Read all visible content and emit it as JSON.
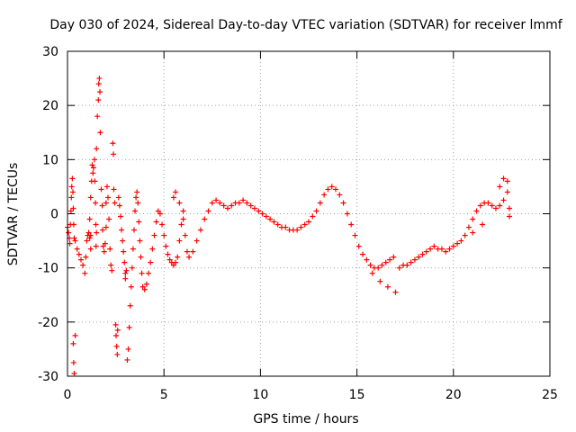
{
  "chart_data": {
    "type": "scatter",
    "title": "Day 030 of 2024, Sidereal Day-to-day VTEC variation (SDTVAR) for receiver lmmf",
    "xlabel": "GPS time / hours",
    "ylabel": "SDTVAR / TECUs",
    "xlim": [
      0,
      25
    ],
    "ylim": [
      -30,
      30
    ],
    "xticks": [
      0,
      5,
      10,
      15,
      20,
      25
    ],
    "yticks": [
      -30,
      -20,
      -10,
      0,
      10,
      20,
      30
    ],
    "grid": true,
    "marker": "+",
    "series": [
      {
        "name": "SDTVAR",
        "color": "#ff0000",
        "points": [
          [
            0.0,
            -2.5
          ],
          [
            0.05,
            -3.5
          ],
          [
            0.1,
            -4.5
          ],
          [
            0.12,
            -5.5
          ],
          [
            0.15,
            -2.0
          ],
          [
            0.18,
            0.5
          ],
          [
            0.2,
            3.0
          ],
          [
            0.22,
            5.0
          ],
          [
            0.25,
            6.5
          ],
          [
            0.28,
            4.0
          ],
          [
            0.3,
            1.0
          ],
          [
            0.32,
            -2.0
          ],
          [
            0.35,
            -4.5
          ],
          [
            0.3,
            -24.0
          ],
          [
            0.32,
            -27.5
          ],
          [
            0.35,
            -29.5
          ],
          [
            0.4,
            -22.5
          ],
          [
            0.4,
            -5.0
          ],
          [
            0.5,
            -6.5
          ],
          [
            0.6,
            -7.5
          ],
          [
            0.7,
            -8.5
          ],
          [
            0.8,
            -9.5
          ],
          [
            0.9,
            -11.0
          ],
          [
            0.95,
            -8.0
          ],
          [
            1.0,
            -5.0
          ],
          [
            1.05,
            -4.0
          ],
          [
            1.1,
            -3.5
          ],
          [
            1.15,
            -4.5
          ],
          [
            1.2,
            -6.5
          ],
          [
            1.2,
            -4.0
          ],
          [
            1.15,
            -1.0
          ],
          [
            1.2,
            3.0
          ],
          [
            1.25,
            6.0
          ],
          [
            1.28,
            9.0
          ],
          [
            1.32,
            7.5
          ],
          [
            1.35,
            8.5
          ],
          [
            1.4,
            10.0
          ],
          [
            1.42,
            6.0
          ],
          [
            1.45,
            2.0
          ],
          [
            1.47,
            -2.0
          ],
          [
            1.5,
            -3.5
          ],
          [
            1.48,
            -6.0
          ],
          [
            1.5,
            12.0
          ],
          [
            1.55,
            18.0
          ],
          [
            1.6,
            21.0
          ],
          [
            1.62,
            24.0
          ],
          [
            1.65,
            25.0
          ],
          [
            1.68,
            22.5
          ],
          [
            1.7,
            15.0
          ],
          [
            1.75,
            4.5
          ],
          [
            1.8,
            1.5
          ],
          [
            1.82,
            -3.0
          ],
          [
            1.85,
            -6.0
          ],
          [
            1.9,
            -7.0
          ],
          [
            1.95,
            -5.5
          ],
          [
            2.0,
            -2.5
          ],
          [
            2.0,
            2.0
          ],
          [
            2.05,
            5.0
          ],
          [
            2.1,
            3.0
          ],
          [
            2.15,
            -1.0
          ],
          [
            2.2,
            -6.5
          ],
          [
            2.25,
            -9.5
          ],
          [
            2.3,
            -10.5
          ],
          [
            2.35,
            13.0
          ],
          [
            2.38,
            11.0
          ],
          [
            2.4,
            4.5
          ],
          [
            2.45,
            2.0
          ],
          [
            2.5,
            -20.5
          ],
          [
            2.52,
            -22.5
          ],
          [
            2.55,
            -24.5
          ],
          [
            2.58,
            -26.0
          ],
          [
            2.6,
            -21.5
          ],
          [
            2.65,
            3.0
          ],
          [
            2.7,
            1.5
          ],
          [
            2.75,
            -0.5
          ],
          [
            2.8,
            -3.0
          ],
          [
            2.85,
            -5.0
          ],
          [
            2.9,
            -7.0
          ],
          [
            2.95,
            -9.0
          ],
          [
            3.0,
            -11.0
          ],
          [
            3.0,
            -12.0
          ],
          [
            3.05,
            -10.5
          ],
          [
            3.1,
            -27.0
          ],
          [
            3.15,
            -25.0
          ],
          [
            3.2,
            -21.0
          ],
          [
            3.25,
            -17.0
          ],
          [
            3.3,
            -13.5
          ],
          [
            3.35,
            -10.0
          ],
          [
            3.4,
            -6.5
          ],
          [
            3.45,
            -3.0
          ],
          [
            3.5,
            0.5
          ],
          [
            3.55,
            3.0
          ],
          [
            3.6,
            4.0
          ],
          [
            3.65,
            2.0
          ],
          [
            3.7,
            -1.5
          ],
          [
            3.75,
            -5.0
          ],
          [
            3.8,
            -8.0
          ],
          [
            3.85,
            -11.0
          ],
          [
            3.9,
            -13.5
          ],
          [
            4.0,
            -14.0
          ],
          [
            4.1,
            -13.0
          ],
          [
            4.2,
            -11.0
          ],
          [
            4.3,
            -9.0
          ],
          [
            4.4,
            -6.5
          ],
          [
            4.5,
            -4.0
          ],
          [
            4.6,
            -1.5
          ],
          [
            4.7,
            0.5
          ],
          [
            4.8,
            0.0
          ],
          [
            4.9,
            -2.0
          ],
          [
            5.0,
            -4.0
          ],
          [
            5.1,
            -6.0
          ],
          [
            5.2,
            -7.5
          ],
          [
            5.3,
            -8.5
          ],
          [
            5.4,
            -9.0
          ],
          [
            5.5,
            -9.5
          ],
          [
            5.6,
            -9.0
          ],
          [
            5.7,
            -8.0
          ],
          [
            5.8,
            -5.0
          ],
          [
            5.9,
            -2.0
          ],
          [
            6.0,
            0.5
          ],
          [
            5.5,
            3.0
          ],
          [
            5.6,
            4.0
          ],
          [
            5.8,
            2.0
          ],
          [
            6.0,
            -1.0
          ],
          [
            6.1,
            -4.0
          ],
          [
            6.2,
            -7.0
          ],
          [
            6.3,
            -8.0
          ],
          [
            6.5,
            -7.0
          ],
          [
            6.7,
            -5.0
          ],
          [
            6.9,
            -3.0
          ],
          [
            7.1,
            -1.0
          ],
          [
            7.3,
            0.5
          ],
          [
            7.5,
            2.0
          ],
          [
            7.7,
            2.5
          ],
          [
            7.9,
            2.0
          ],
          [
            8.1,
            1.5
          ],
          [
            8.3,
            1.0
          ],
          [
            8.5,
            1.5
          ],
          [
            8.7,
            2.0
          ],
          [
            8.9,
            2.0
          ],
          [
            9.1,
            2.5
          ],
          [
            9.3,
            2.0
          ],
          [
            9.5,
            1.5
          ],
          [
            9.7,
            1.0
          ],
          [
            9.9,
            0.5
          ],
          [
            10.1,
            0.0
          ],
          [
            10.3,
            -0.5
          ],
          [
            10.5,
            -1.0
          ],
          [
            10.7,
            -1.5
          ],
          [
            10.9,
            -2.0
          ],
          [
            11.1,
            -2.5
          ],
          [
            11.3,
            -2.5
          ],
          [
            11.5,
            -3.0
          ],
          [
            11.7,
            -3.0
          ],
          [
            11.9,
            -3.0
          ],
          [
            12.1,
            -2.5
          ],
          [
            12.3,
            -2.0
          ],
          [
            12.5,
            -1.5
          ],
          [
            12.7,
            -0.5
          ],
          [
            12.9,
            0.5
          ],
          [
            13.1,
            2.0
          ],
          [
            13.3,
            3.5
          ],
          [
            13.5,
            4.5
          ],
          [
            13.7,
            5.0
          ],
          [
            13.9,
            4.5
          ],
          [
            14.1,
            3.5
          ],
          [
            14.3,
            2.0
          ],
          [
            14.5,
            0.0
          ],
          [
            14.7,
            -2.0
          ],
          [
            14.9,
            -4.0
          ],
          [
            15.1,
            -6.0
          ],
          [
            15.3,
            -7.5
          ],
          [
            15.5,
            -8.5
          ],
          [
            15.7,
            -9.5
          ],
          [
            15.9,
            -10.0
          ],
          [
            16.1,
            -10.0
          ],
          [
            16.3,
            -9.5
          ],
          [
            16.5,
            -9.0
          ],
          [
            16.7,
            -8.5
          ],
          [
            16.9,
            -8.0
          ],
          [
            15.8,
            -11.0
          ],
          [
            16.2,
            -12.5
          ],
          [
            16.6,
            -13.5
          ],
          [
            17.0,
            -14.5
          ],
          [
            17.2,
            -10.0
          ],
          [
            17.4,
            -9.5
          ],
          [
            17.6,
            -9.5
          ],
          [
            17.8,
            -9.0
          ],
          [
            18.0,
            -8.5
          ],
          [
            18.2,
            -8.0
          ],
          [
            18.4,
            -7.5
          ],
          [
            18.6,
            -7.0
          ],
          [
            18.8,
            -6.5
          ],
          [
            19.0,
            -6.0
          ],
          [
            19.2,
            -6.5
          ],
          [
            19.4,
            -6.5
          ],
          [
            19.6,
            -7.0
          ],
          [
            19.8,
            -6.5
          ],
          [
            20.0,
            -6.0
          ],
          [
            20.2,
            -5.5
          ],
          [
            20.4,
            -5.0
          ],
          [
            20.6,
            -4.0
          ],
          [
            20.8,
            -2.5
          ],
          [
            21.0,
            -1.0
          ],
          [
            21.2,
            0.5
          ],
          [
            21.4,
            1.5
          ],
          [
            21.6,
            2.0
          ],
          [
            21.8,
            2.0
          ],
          [
            22.0,
            1.5
          ],
          [
            22.2,
            1.0
          ],
          [
            22.4,
            1.5
          ],
          [
            22.6,
            2.5
          ],
          [
            22.8,
            4.0
          ],
          [
            22.4,
            5.0
          ],
          [
            22.6,
            6.5
          ],
          [
            22.8,
            6.0
          ],
          [
            22.9,
            1.0
          ],
          [
            22.9,
            -0.5
          ],
          [
            21.5,
            -2.0
          ],
          [
            21.0,
            -3.5
          ]
        ]
      }
    ]
  }
}
